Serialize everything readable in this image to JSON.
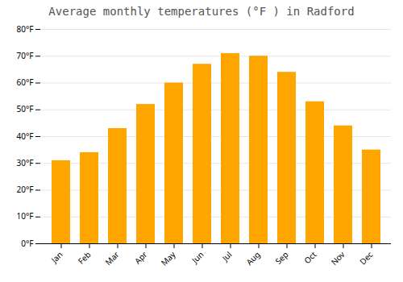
{
  "chart_data": {
    "type": "bar",
    "title": "Average monthly temperatures (°F ) in Radford",
    "categories": [
      "Jan",
      "Feb",
      "Mar",
      "Apr",
      "May",
      "Jun",
      "Jul",
      "Aug",
      "Sep",
      "Oct",
      "Nov",
      "Dec"
    ],
    "values": [
      31,
      34,
      43,
      52,
      60,
      67,
      71,
      70,
      64,
      53,
      44,
      35
    ],
    "color": "#FFA500",
    "ylim": [
      0,
      80
    ],
    "yticks": [
      {
        "value": 0,
        "label": "0°F"
      },
      {
        "value": 10,
        "label": "10°F"
      },
      {
        "value": 20,
        "label": "20°F"
      },
      {
        "value": 30,
        "label": "30°F"
      },
      {
        "value": 40,
        "label": "40°F"
      },
      {
        "value": 50,
        "label": "50°F"
      },
      {
        "value": 60,
        "label": "60°F"
      },
      {
        "value": 70,
        "label": "70°F"
      },
      {
        "value": 80,
        "label": "80°F"
      }
    ],
    "grid": true
  }
}
